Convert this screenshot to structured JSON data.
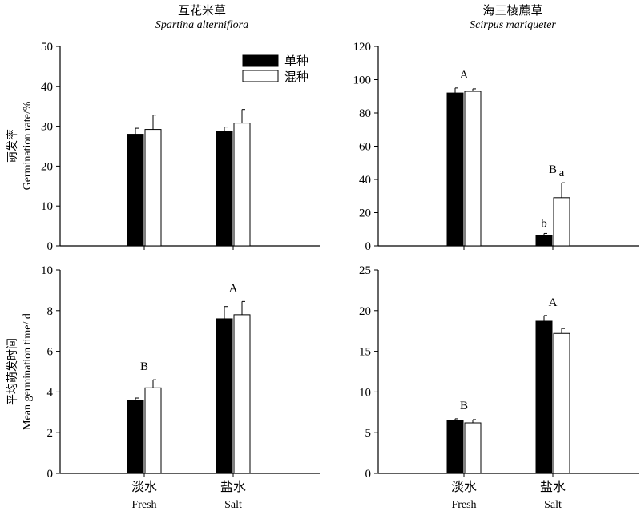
{
  "figure": {
    "col_titles": [
      {
        "cn": "互花米草",
        "latin": "Spartina alterniflora"
      },
      {
        "cn": "海三棱藨草",
        "latin": "Scirpus mariqueter"
      }
    ],
    "row_ylabels": [
      {
        "cn": "萌发率",
        "en": "Germination rate/%"
      },
      {
        "cn": "平均萌发时间",
        "en": "Mean germination time/ d"
      }
    ],
    "x_labels": [
      {
        "cn": "淡水",
        "en": "Fresh"
      },
      {
        "cn": "盐水",
        "en": "Salt"
      }
    ],
    "legend": {
      "mono": "单种",
      "mixed": "混种",
      "mono_color": "#000000",
      "mixed_color": "#ffffff"
    }
  },
  "chart_data": [
    {
      "type": "bar",
      "panel": "top-left",
      "categories": [
        "Fresh",
        "Salt"
      ],
      "ylim": [
        0,
        50
      ],
      "yticks": [
        0,
        10,
        20,
        30,
        40,
        50
      ],
      "series": [
        {
          "name": "单种",
          "values": [
            28.0,
            28.8
          ],
          "errors": [
            1.5,
            1.0
          ]
        },
        {
          "name": "混种",
          "values": [
            29.2,
            30.8
          ],
          "errors": [
            3.6,
            3.4
          ]
        }
      ],
      "annotations": []
    },
    {
      "type": "bar",
      "panel": "top-right",
      "categories": [
        "Fresh",
        "Salt"
      ],
      "ylim": [
        0,
        120
      ],
      "yticks": [
        0,
        20,
        40,
        60,
        80,
        100,
        120
      ],
      "series": [
        {
          "name": "单种",
          "values": [
            92,
            6.5
          ],
          "errors": [
            3,
            1
          ]
        },
        {
          "name": "混种",
          "values": [
            93,
            29
          ],
          "errors": [
            1.5,
            9
          ]
        }
      ],
      "annotations": [
        {
          "text": "A",
          "category": 0
        },
        {
          "text": "B",
          "category": 1
        },
        {
          "text": "b",
          "category": 1,
          "series": 0
        },
        {
          "text": "a",
          "category": 1,
          "series": 1
        }
      ]
    },
    {
      "type": "bar",
      "panel": "bottom-left",
      "categories": [
        "Fresh",
        "Salt"
      ],
      "ylim": [
        0,
        10
      ],
      "yticks": [
        0,
        2,
        4,
        6,
        8,
        10
      ],
      "series": [
        {
          "name": "单种",
          "values": [
            3.6,
            7.6
          ],
          "errors": [
            0.1,
            0.6
          ]
        },
        {
          "name": "混种",
          "values": [
            4.2,
            7.8
          ],
          "errors": [
            0.4,
            0.65
          ]
        }
      ],
      "annotations": [
        {
          "text": "B",
          "category": 0
        },
        {
          "text": "A",
          "category": 1
        }
      ]
    },
    {
      "type": "bar",
      "panel": "bottom-right",
      "categories": [
        "Fresh",
        "Salt"
      ],
      "ylim": [
        0,
        25
      ],
      "yticks": [
        0,
        5,
        10,
        15,
        20,
        25
      ],
      "series": [
        {
          "name": "单种",
          "values": [
            6.5,
            18.7
          ],
          "errors": [
            0.2,
            0.7
          ]
        },
        {
          "name": "混种",
          "values": [
            6.2,
            17.2
          ],
          "errors": [
            0.4,
            0.6
          ]
        }
      ],
      "annotations": [
        {
          "text": "B",
          "category": 0
        },
        {
          "text": "A",
          "category": 1
        }
      ]
    }
  ]
}
